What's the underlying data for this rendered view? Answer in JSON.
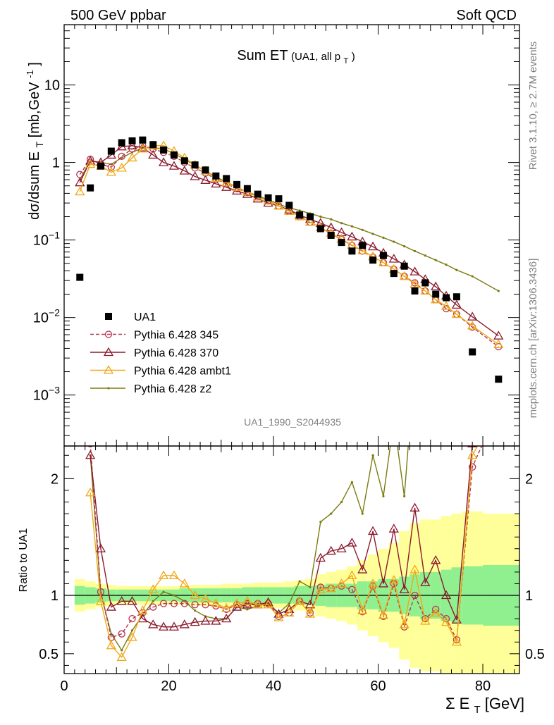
{
  "header": {
    "left": "500 GeV ppbar",
    "right": "Soft QCD"
  },
  "side": {
    "rivet": "Rivet 3.1.10, ≥ 2.7M events",
    "mcplots": "mcplots.cern.ch [arXiv:1306.3436]"
  },
  "chart_data": {
    "type": "scatter",
    "title_main": "Sum ET",
    "title_sub": "(UA1, all p",
    "title_sub_index": "T",
    "title_sub_end": ")",
    "analysis_id": "UA1_1990_S2044935",
    "ylabel_main": "dσ/dsum E",
    "ylabel_main_sub": "T",
    "ylabel_main_units": " [mb,GeV",
    "ylabel_main_sup": "-1",
    "ylabel_main_end": "]",
    "ylabel_ratio": "Ratio to UA1",
    "xlabel_main": "Σ E",
    "xlabel_sub": "T",
    "xlabel_units": " [GeV]",
    "xlim": [
      0,
      87
    ],
    "ylim_log": [
      0.00022,
      60
    ],
    "ratio_ylim": [
      0.33,
      2.28
    ],
    "x_ticks": [
      0,
      20,
      40,
      60,
      80
    ],
    "x_tick_labels": [
      "0",
      "20",
      "40",
      "60",
      "80"
    ],
    "y_ticks": [
      {
        "value": 10,
        "label": "10"
      },
      {
        "value": 1,
        "label": "1"
      },
      {
        "value": 0.1,
        "base": "10",
        "exp": "−1"
      },
      {
        "value": 0.01,
        "base": "10",
        "exp": "−2"
      },
      {
        "value": 0.001,
        "base": "10",
        "exp": "−3"
      }
    ],
    "ratio_ticks": [
      {
        "value": 2,
        "label": "2"
      },
      {
        "value": 1,
        "label": "1"
      },
      {
        "value": 0.5,
        "label": "0.5"
      }
    ],
    "legend": [
      {
        "label": "UA1",
        "color": "#000000",
        "marker": "square"
      },
      {
        "label": "Pythia 6.428 345",
        "color": "#b5334f",
        "marker": "circle",
        "dash": true
      },
      {
        "label": "Pythia 6.428 370",
        "color": "#8b1a2d",
        "marker": "triangle"
      },
      {
        "label": "Pythia 6.428 ambt1",
        "color": "#f0a818",
        "marker": "triangle"
      },
      {
        "label": "Pythia 6.428 z2",
        "color": "#7b7b10",
        "marker": "dot"
      }
    ],
    "data": {
      "x": [
        3,
        5,
        7,
        9,
        11,
        13,
        15,
        17,
        19,
        21,
        23,
        25,
        27,
        29,
        31,
        33,
        35,
        37,
        39,
        41,
        43,
        45,
        47,
        49,
        51,
        53,
        55,
        57,
        59,
        61,
        63,
        65,
        67,
        69,
        71,
        73,
        75,
        78,
        83
      ],
      "y": [
        0.033,
        0.47,
        0.9,
        1.4,
        1.8,
        1.9,
        1.95,
        1.7,
        1.45,
        1.25,
        1.05,
        0.93,
        0.8,
        0.67,
        0.62,
        0.52,
        0.46,
        0.39,
        0.35,
        0.34,
        0.28,
        0.21,
        0.2,
        0.14,
        0.115,
        0.093,
        0.072,
        0.085,
        0.055,
        0.063,
        0.037,
        0.046,
        0.022,
        0.028,
        0.02,
        0.018,
        0.0185,
        0.0036,
        0.0016
      ]
    },
    "ratio_band": {
      "x_edges": [
        2,
        4,
        6,
        8,
        10,
        12,
        14,
        16,
        18,
        20,
        22,
        24,
        26,
        28,
        30,
        32,
        34,
        36,
        38,
        40,
        42,
        44,
        46,
        48,
        50,
        52,
        54,
        56,
        58,
        60,
        62,
        64,
        66,
        68,
        70,
        72,
        74,
        76,
        80,
        87
      ],
      "inner": [
        0.08,
        0.07,
        0.06,
        0.05,
        0.05,
        0.05,
        0.05,
        0.05,
        0.05,
        0.05,
        0.06,
        0.06,
        0.06,
        0.06,
        0.06,
        0.06,
        0.07,
        0.07,
        0.07,
        0.07,
        0.07,
        0.08,
        0.08,
        0.09,
        0.1,
        0.1,
        0.1,
        0.12,
        0.12,
        0.14,
        0.14,
        0.16,
        0.18,
        0.2,
        0.2,
        0.22,
        0.24,
        0.25,
        0.26
      ],
      "outer": [
        0.14,
        0.12,
        0.1,
        0.09,
        0.08,
        0.08,
        0.08,
        0.08,
        0.08,
        0.08,
        0.08,
        0.09,
        0.09,
        0.09,
        0.1,
        0.1,
        0.1,
        0.11,
        0.11,
        0.11,
        0.12,
        0.13,
        0.14,
        0.18,
        0.2,
        0.22,
        0.25,
        0.3,
        0.35,
        0.4,
        0.45,
        0.55,
        0.62,
        0.65,
        0.65,
        0.68,
        0.7,
        0.72,
        0.7
      ]
    },
    "series": [
      {
        "name": "Pythia 6.428 345",
        "color": "#b5334f",
        "marker": "circle",
        "dash": true,
        "x": [
          3,
          5,
          7,
          9,
          11,
          13,
          15,
          17,
          19,
          21,
          23,
          25,
          27,
          29,
          31,
          33,
          35,
          37,
          39,
          41,
          43,
          45,
          47,
          49,
          51,
          53,
          55,
          57,
          59,
          61,
          63,
          65,
          67,
          69,
          71,
          73,
          75,
          78,
          83
        ],
        "y": [
          0.7,
          1.1,
          0.95,
          0.87,
          1.2,
          1.5,
          1.65,
          1.5,
          1.35,
          1.2,
          1.0,
          0.85,
          0.73,
          0.61,
          0.53,
          0.46,
          0.41,
          0.36,
          0.32,
          0.275,
          0.235,
          0.2,
          0.17,
          0.145,
          0.12,
          0.102,
          0.085,
          0.072,
          0.06,
          0.051,
          0.042,
          0.034,
          0.028,
          0.022,
          0.017,
          0.013,
          0.011,
          0.0075,
          0.0042
        ],
        "ratio": [
          null,
          2.3,
          1.03,
          0.64,
          0.67,
          0.8,
          0.85,
          0.9,
          0.93,
          0.93,
          0.93,
          0.92,
          0.92,
          0.91,
          0.88,
          0.92,
          0.93,
          0.93,
          0.93,
          0.82,
          0.85,
          0.95,
          0.85,
          1.07,
          1.06,
          1.08,
          1.05,
          0.86,
          1.08,
          0.82,
          1.1,
          0.73,
          1.0,
          0.8,
          0.88,
          0.8,
          0.62,
          2.1,
          2.6
        ]
      },
      {
        "name": "Pythia 6.428 370",
        "color": "#8b1a2d",
        "marker": "triangle",
        "dash": false,
        "x": [
          3,
          5,
          7,
          9,
          11,
          13,
          15,
          17,
          19,
          21,
          23,
          25,
          27,
          29,
          31,
          33,
          35,
          37,
          39,
          41,
          43,
          45,
          47,
          49,
          51,
          53,
          55,
          57,
          59,
          61,
          63,
          65,
          67,
          69,
          71,
          73,
          75,
          78,
          83
        ],
        "y": [
          0.55,
          1.05,
          1.0,
          1.25,
          1.6,
          1.65,
          1.55,
          1.25,
          1.0,
          0.9,
          0.78,
          0.66,
          0.59,
          0.53,
          0.48,
          0.43,
          0.39,
          0.34,
          0.3,
          0.275,
          0.245,
          0.21,
          0.185,
          0.165,
          0.145,
          0.125,
          0.11,
          0.095,
          0.082,
          0.068,
          0.057,
          0.048,
          0.039,
          0.031,
          0.025,
          0.019,
          0.0145,
          0.0102,
          0.0058
        ],
        "ratio": [
          null,
          2.2,
          1.4,
          0.9,
          0.95,
          0.95,
          0.8,
          0.75,
          0.73,
          0.73,
          0.75,
          0.77,
          0.78,
          0.78,
          0.8,
          0.9,
          0.92,
          0.92,
          0.94,
          0.84,
          0.88,
          0.95,
          0.92,
          1.32,
          1.38,
          1.4,
          1.45,
          1.22,
          1.55,
          1.1,
          1.57,
          1.05,
          1.75,
          1.11,
          1.3,
          1.0,
          0.79,
          2.3,
          2.8
        ]
      },
      {
        "name": "Pythia 6.428 ambt1",
        "color": "#f0a818",
        "marker": "triangle",
        "dash": false,
        "x": [
          3,
          5,
          7,
          9,
          11,
          13,
          15,
          17,
          19,
          21,
          23,
          25,
          27,
          29,
          31,
          33,
          35,
          37,
          39,
          41,
          43,
          45,
          47,
          49,
          51,
          53,
          55,
          57,
          59,
          61,
          63,
          65,
          67,
          69,
          71,
          73,
          75,
          78,
          83
        ],
        "y": [
          0.42,
          0.95,
          0.9,
          0.75,
          0.85,
          1.15,
          1.5,
          1.65,
          1.65,
          1.4,
          1.15,
          0.93,
          0.78,
          0.63,
          0.55,
          0.48,
          0.42,
          0.36,
          0.32,
          0.275,
          0.235,
          0.2,
          0.17,
          0.145,
          0.122,
          0.103,
          0.086,
          0.073,
          0.061,
          0.051,
          0.042,
          0.034,
          0.027,
          0.022,
          0.017,
          0.014,
          0.011,
          0.0078,
          0.0045
        ],
        "ratio": [
          null,
          1.88,
          0.95,
          0.57,
          0.47,
          0.64,
          0.87,
          1.05,
          1.17,
          1.17,
          1.1,
          1.0,
          0.97,
          0.93,
          0.89,
          0.93,
          0.95,
          0.92,
          0.92,
          0.81,
          0.85,
          0.95,
          0.84,
          1.05,
          1.06,
          1.1,
          1.17,
          0.87,
          1.1,
          0.83,
          1.13,
          0.75,
          1.22,
          0.78,
          0.85,
          0.77,
          0.6,
          2.2,
          2.6
        ]
      },
      {
        "name": "Pythia 6.428 z2",
        "color": "#7b7b10",
        "marker": "dot",
        "dash": false,
        "x": [
          3,
          5,
          7,
          9,
          11,
          13,
          15,
          17,
          19,
          21,
          23,
          25,
          27,
          29,
          31,
          33,
          35,
          37,
          39,
          41,
          43,
          45,
          47,
          49,
          51,
          53,
          55,
          57,
          59,
          61,
          63,
          65,
          67,
          69,
          71,
          73,
          75,
          78,
          83
        ],
        "y": [
          0.6,
          1.05,
          1.0,
          0.95,
          1.15,
          1.35,
          1.55,
          1.55,
          1.5,
          1.3,
          1.1,
          0.92,
          0.78,
          0.65,
          0.56,
          0.48,
          0.42,
          0.37,
          0.33,
          0.29,
          0.26,
          0.24,
          0.22,
          0.2,
          0.185,
          0.165,
          0.15,
          0.135,
          0.12,
          0.107,
          0.095,
          0.083,
          0.072,
          0.063,
          0.055,
          0.048,
          0.041,
          0.034,
          0.022
        ],
        "ratio": [
          null,
          2.2,
          1.02,
          0.67,
          0.53,
          0.7,
          0.83,
          0.95,
          1.03,
          1.0,
          0.95,
          0.87,
          0.82,
          0.8,
          0.8,
          0.9,
          0.88,
          0.91,
          0.93,
          0.85,
          0.93,
          1.12,
          1.07,
          1.63,
          1.7,
          1.8,
          1.97,
          1.7,
          2.2,
          1.85,
          2.5,
          1.85,
          3.0,
          2.3,
          2.6,
          2.7,
          2.3,
          3.0,
          3.5
        ]
      }
    ]
  }
}
